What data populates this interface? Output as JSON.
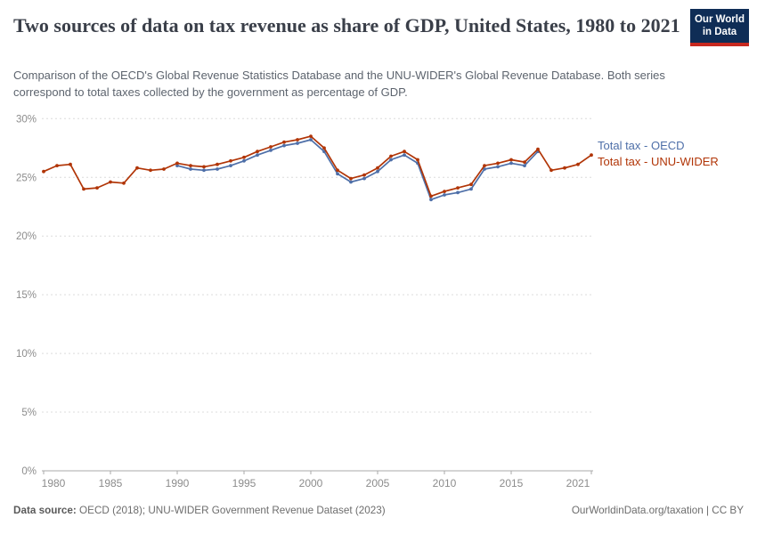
{
  "header": {
    "title": "Two sources of data on tax revenue as share of GDP, United States, 1980 to 2021",
    "subtitle": "Comparison of the OECD's Global Revenue Statistics Database and the UNU-WIDER's Global Revenue Database. Both series correspond to total taxes collected by the government as percentage of GDP.",
    "logo": {
      "line1": "Our World",
      "line2": "in Data"
    }
  },
  "chart_data": {
    "type": "line",
    "title": "Two sources of data on tax revenue as share of GDP, United States, 1980 to 2021",
    "ylabel": "",
    "xlabel": "",
    "ylim": [
      0,
      30
    ],
    "xlim": [
      1980,
      2021
    ],
    "grid": "horizontal-dashed",
    "legend_position": "right-of-line-ends",
    "yticks": [
      0,
      5,
      10,
      15,
      20,
      25,
      30
    ],
    "ytick_labels": [
      "0%",
      "5%",
      "10%",
      "15%",
      "20%",
      "25%",
      "30%"
    ],
    "xticks": [
      1980,
      1985,
      1990,
      1995,
      2000,
      2005,
      2010,
      2015,
      2021
    ],
    "unit": "% of GDP",
    "series": [
      {
        "id": "oecd",
        "name": "Total tax - OECD",
        "color": "#4e6fa8",
        "years": [
          1990,
          1991,
          1992,
          1993,
          1994,
          1995,
          1996,
          1997,
          1998,
          1999,
          2000,
          2001,
          2002,
          2003,
          2004,
          2005,
          2006,
          2007,
          2008,
          2009,
          2010,
          2011,
          2012,
          2013,
          2014,
          2015,
          2016,
          2017
        ],
        "values": [
          26.0,
          25.7,
          25.6,
          25.7,
          26.0,
          26.4,
          26.9,
          27.3,
          27.7,
          27.9,
          28.2,
          27.2,
          25.3,
          24.6,
          24.9,
          25.5,
          26.5,
          26.9,
          26.2,
          23.1,
          23.5,
          23.7,
          24.0,
          25.7,
          25.9,
          26.2,
          26.0,
          27.2
        ]
      },
      {
        "id": "unu-wider",
        "name": "Total tax - UNU-WIDER",
        "color": "#b13507",
        "years": [
          1980,
          1981,
          1982,
          1983,
          1984,
          1985,
          1986,
          1987,
          1988,
          1989,
          1990,
          1991,
          1992,
          1993,
          1994,
          1995,
          1996,
          1997,
          1998,
          1999,
          2000,
          2001,
          2002,
          2003,
          2004,
          2005,
          2006,
          2007,
          2008,
          2009,
          2010,
          2011,
          2012,
          2013,
          2014,
          2015,
          2016,
          2017,
          2018,
          2019,
          2020,
          2021
        ],
        "values": [
          25.5,
          26.0,
          26.1,
          24.0,
          24.1,
          24.6,
          24.5,
          25.8,
          25.6,
          25.7,
          26.2,
          26.0,
          25.9,
          26.1,
          26.4,
          26.7,
          27.2,
          27.6,
          28.0,
          28.2,
          28.5,
          27.5,
          25.6,
          24.9,
          25.2,
          25.8,
          26.8,
          27.2,
          26.5,
          23.4,
          23.8,
          24.1,
          24.4,
          26.0,
          26.2,
          26.5,
          26.3,
          27.4,
          25.6,
          25.8,
          26.1,
          26.9
        ]
      }
    ]
  },
  "footer": {
    "source_label": "Data source:",
    "source_text": " OECD (2018); UNU-WIDER Government Revenue Dataset (2023)",
    "link_text": "OurWorldinData.org/taxation | CC BY"
  },
  "colors": {
    "title": "#3a3f49",
    "subtitle": "#5d646e",
    "axis_label": "#8c8c8c",
    "gridline": "#dcdcdc",
    "axis_line": "#a8a8a8",
    "logo_bg": "#0f2d56",
    "logo_stripe": "#c7281f",
    "series_oecd": "#4e6fa8",
    "series_unu_wider": "#b13507"
  }
}
